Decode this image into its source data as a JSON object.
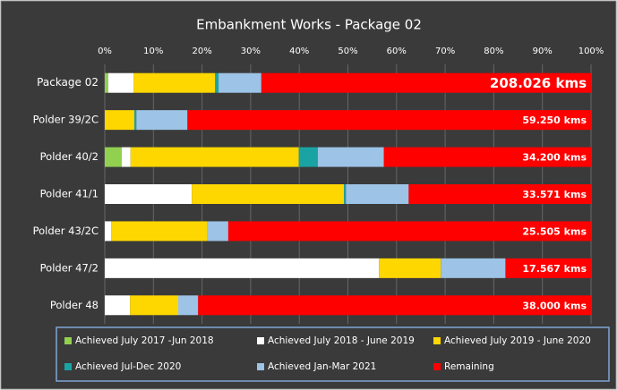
{
  "chart_data": {
    "type": "stacked_barh",
    "title": "Embankment Works - Package 02",
    "categories": [
      "Package 02",
      "Polder 39/2C",
      "Polder 40/2",
      "Polder 41/1",
      "Polder 43/2C",
      "Polder 47/2",
      "Polder 48"
    ],
    "series": [
      {
        "name": "Achieved July 2017 -Jun 2018",
        "color": "#92d050",
        "values": [
          0.7,
          0,
          3.5,
          0,
          0,
          0,
          0
        ]
      },
      {
        "name": "Achieved  July 2018 - June 2019",
        "color": "#ffffff",
        "values": [
          5.2,
          0,
          1.8,
          17.9,
          1.3,
          56.4,
          5.2
        ]
      },
      {
        "name": "Achieved  July 2019 - June 2020",
        "color": "#ffd700",
        "values": [
          16.8,
          6.1,
          34.6,
          31.3,
          19.7,
          12.7,
          9.9
        ]
      },
      {
        "name": "Achieved  Jul-Dec 2020",
        "color": "#1aa3a3",
        "values": [
          0.7,
          0.4,
          3.9,
          0.4,
          0,
          0,
          0
        ]
      },
      {
        "name": "Achieved  Jan-Mar 2021",
        "color": "#9dc3e6",
        "values": [
          8.8,
          10.5,
          13.6,
          12.9,
          4.4,
          13.3,
          4.1
        ]
      },
      {
        "name": "Remaining",
        "color": "#ff0000",
        "values": [
          67.8,
          83.0,
          42.6,
          37.5,
          74.6,
          17.6,
          80.8
        ]
      }
    ],
    "annotations": [
      "208.026 kms",
      "59.250 kms",
      "34.200 kms",
      "33.571 kms",
      "25.505 kms",
      "17.567 kms",
      "38.000 kms"
    ],
    "xlim": [
      0,
      100
    ],
    "xticks": [
      {
        "value": 0,
        "label": "0%"
      },
      {
        "value": 10,
        "label": "10%"
      },
      {
        "value": 20,
        "label": "20%"
      },
      {
        "value": 30,
        "label": "30%"
      },
      {
        "value": 40,
        "label": "40%"
      },
      {
        "value": 50,
        "label": "50%"
      },
      {
        "value": 60,
        "label": "60%"
      },
      {
        "value": 70,
        "label": "70%"
      },
      {
        "value": 80,
        "label": "80%"
      },
      {
        "value": 90,
        "label": "90%"
      },
      {
        "value": 100,
        "label": "100%"
      }
    ],
    "grid": true,
    "legend": "bottom"
  }
}
